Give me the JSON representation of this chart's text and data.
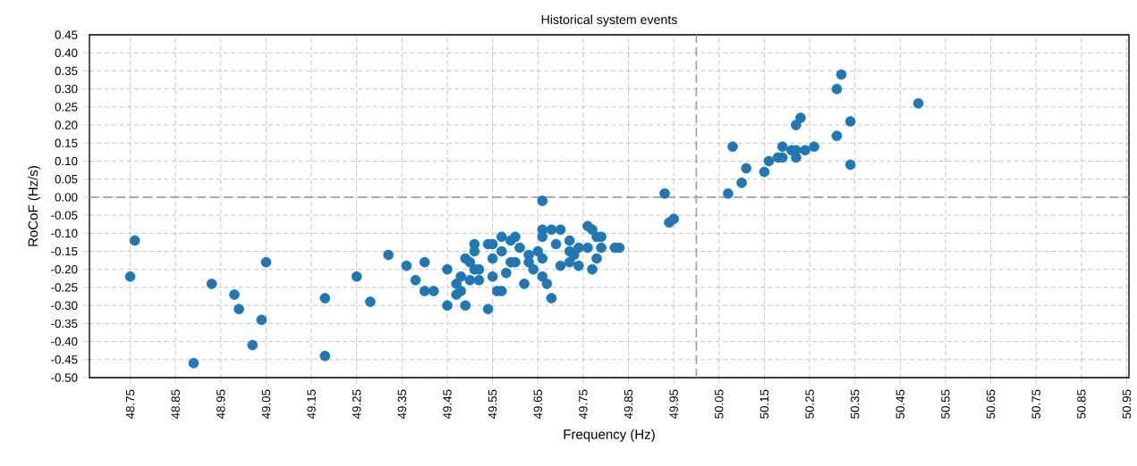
{
  "chart_data": {
    "type": "scatter",
    "title": "Historical system events",
    "xlabel": "Frequency (Hz)",
    "ylabel": "RoCoF (Hz/s)",
    "series": [
      {
        "color": "#1f77b4",
        "x": [
          48.76,
          48.75,
          48.89,
          48.93,
          48.98,
          48.99,
          49.02,
          49.04,
          49.05,
          49.18,
          49.18,
          49.25,
          49.28,
          49.32,
          49.36,
          49.38,
          49.4,
          49.4,
          49.42,
          49.45,
          49.45,
          49.47,
          49.47,
          49.48,
          49.48,
          49.49,
          49.49,
          49.5,
          49.5,
          49.52,
          49.51,
          49.51,
          49.54,
          49.55,
          49.51,
          49.52,
          49.55,
          49.55,
          49.54,
          49.56,
          49.57,
          49.57,
          49.58,
          49.57,
          49.6,
          49.59,
          49.59,
          49.6,
          49.61,
          49.62,
          49.63,
          49.63,
          49.64,
          49.65,
          49.66,
          49.66,
          49.68,
          49.7,
          49.66,
          49.66,
          49.66,
          49.67,
          49.68,
          49.69,
          49.7,
          49.72,
          49.72,
          49.72,
          49.73,
          49.74,
          49.74,
          49.76,
          49.77,
          49.78,
          49.79,
          49.76,
          49.78,
          49.77,
          49.79,
          49.82,
          49.83,
          49.93,
          49.94,
          49.95,
          50.07,
          50.08,
          50.1,
          50.11,
          50.15,
          50.16,
          50.18,
          50.19,
          50.19,
          50.21,
          50.22,
          50.22,
          50.24,
          50.26,
          50.22,
          50.23,
          50.31,
          50.31,
          50.32,
          50.34,
          50.34,
          50.49
        ],
        "values": [
          -0.12,
          -0.22,
          -0.46,
          -0.24,
          -0.27,
          -0.31,
          -0.41,
          -0.34,
          -0.18,
          -0.28,
          -0.44,
          -0.22,
          -0.29,
          -0.16,
          -0.19,
          -0.23,
          -0.18,
          -0.26,
          -0.26,
          -0.2,
          -0.3,
          -0.24,
          -0.27,
          -0.22,
          -0.26,
          -0.3,
          -0.17,
          -0.18,
          -0.23,
          -0.23,
          -0.13,
          -0.15,
          -0.13,
          -0.13,
          -0.2,
          -0.2,
          -0.17,
          -0.22,
          -0.31,
          -0.26,
          -0.26,
          -0.15,
          -0.21,
          -0.11,
          -0.11,
          -0.12,
          -0.18,
          -0.18,
          -0.14,
          -0.24,
          -0.16,
          -0.18,
          -0.2,
          -0.15,
          -0.01,
          -0.09,
          -0.09,
          -0.09,
          -0.11,
          -0.17,
          -0.22,
          -0.24,
          -0.28,
          -0.13,
          -0.19,
          -0.18,
          -0.12,
          -0.15,
          -0.16,
          -0.14,
          -0.19,
          -0.08,
          -0.09,
          -0.11,
          -0.11,
          -0.14,
          -0.17,
          -0.2,
          -0.14,
          -0.14,
          -0.14,
          0.01,
          -0.07,
          -0.06,
          0.01,
          0.14,
          0.04,
          0.08,
          0.07,
          0.1,
          0.11,
          0.11,
          0.14,
          0.13,
          0.11,
          0.13,
          0.13,
          0.14,
          0.2,
          0.22,
          0.17,
          0.3,
          0.34,
          0.21,
          0.09,
          0.26
        ]
      }
    ],
    "xlim": [
      48.66,
      50.955
    ],
    "ylim": [
      -0.5,
      0.45
    ],
    "xticks": [
      48.75,
      48.85,
      48.95,
      49.05,
      49.15,
      49.25,
      49.35,
      49.45,
      49.55,
      49.65,
      49.75,
      49.85,
      49.95,
      50.05,
      50.15,
      50.25,
      50.35,
      50.45,
      50.55,
      50.65,
      50.75,
      50.85,
      50.95
    ],
    "yticks": [
      {
        "value": -0.5,
        "label": "-0.50"
      },
      {
        "value": -0.45,
        "label": "-0.45"
      },
      {
        "value": -0.4,
        "label": "-0.40"
      },
      {
        "value": -0.35,
        "label": "-0.35"
      },
      {
        "value": -0.3,
        "label": "-0.30"
      },
      {
        "value": -0.25,
        "label": "-0.25"
      },
      {
        "value": -0.2,
        "label": "-0.20"
      },
      {
        "value": -0.15,
        "label": "-0.15"
      },
      {
        "value": -0.1,
        "label": "-0.10"
      },
      {
        "value": -0.05,
        "label": "-0.05"
      },
      {
        "value": 0,
        "label": "0.00"
      },
      {
        "value": 0.05,
        "label": "0.05"
      },
      {
        "value": 0.1,
        "label": "0.10"
      },
      {
        "value": 0.15,
        "label": "0.15"
      },
      {
        "value": 0.2,
        "label": "0.20"
      },
      {
        "value": 0.25,
        "label": "0.25"
      },
      {
        "value": 0.3,
        "label": "0.30"
      },
      {
        "value": 0.35,
        "label": "0.35"
      },
      {
        "value": 0.4,
        "label": "0.40"
      },
      {
        "value": 0.45,
        "label": "0.45"
      }
    ],
    "ref_lines": [
      {
        "axis": "y",
        "value": 0,
        "color": "#a0a0a0",
        "line_style": "dashed"
      },
      {
        "axis": "x",
        "value": 50.0,
        "color": "#a0a0a0",
        "line_style": "dashed"
      }
    ],
    "grid": true,
    "marker": "circle"
  }
}
